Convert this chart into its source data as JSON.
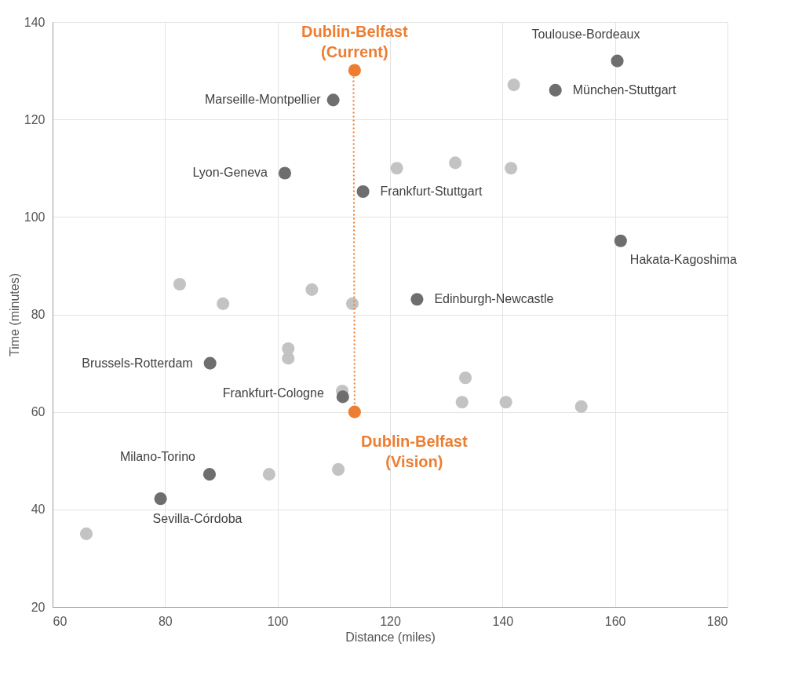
{
  "chart_data": {
    "type": "scatter",
    "xlabel": "Distance (miles)",
    "ylabel": "Time (minutes)",
    "xlim": [
      60,
      180
    ],
    "xticks": [
      60,
      80,
      100,
      120,
      140,
      160,
      180
    ],
    "ylim": [
      20,
      140
    ],
    "yticks": [
      20,
      40,
      60,
      80,
      100,
      120,
      140
    ],
    "grid": true,
    "series": [
      {
        "color": "#c3c3c3",
        "marker": "circle",
        "x": [
          142.0,
          121.2,
          131.6,
          141.5,
          82.6,
          90.3,
          106.1,
          113.3,
          101.9,
          101.9,
          111.5,
          133.4,
          132.8,
          140.6,
          154.0,
          98.5,
          110.8,
          66.0
        ],
        "values": [
          127.1,
          110.0,
          111.1,
          110.0,
          86.2,
          82.2,
          85.1,
          82.2,
          73.0,
          71.0,
          64.3,
          67.0,
          62.0,
          62.0,
          61.1,
          47.2,
          48.2,
          35.0
        ]
      },
      {
        "color": "#6e6e6e",
        "marker": "circle",
        "x": [
          160.4,
          149.4,
          109.9,
          101.3,
          115.2,
          161.0,
          124.8,
          88.0,
          111.6,
          87.9,
          79.2
        ],
        "values": [
          132.0,
          126.0,
          124.0,
          109.0,
          105.2,
          95.1,
          83.1,
          70.0,
          63.1,
          47.2,
          42.2
        ]
      },
      {
        "type": "line",
        "color": "#ed7d31",
        "line_style": "dotted",
        "marker": "none",
        "x": [
          113.5,
          113.7
        ],
        "values": [
          128.8,
          61.6
        ]
      },
      {
        "name": "Dublin-Belfast\n(Current)",
        "color": "#ed7d31",
        "marker": "circle",
        "x": [
          113.7
        ],
        "values": [
          130.1
        ]
      },
      {
        "name": "Dublin-Belfast\n(Vision)",
        "color": "#ed7d31",
        "marker": "circle",
        "x": [
          113.7
        ],
        "values": [
          60.0
        ]
      }
    ],
    "annotations": [
      {
        "text": "Toulouse-Bordeaux",
        "x": 160.4,
        "y": 132.0
      },
      {
        "text": "München-Stuttgart",
        "x": 149.4,
        "y": 126.0
      },
      {
        "text": "Marseille-Montpellier",
        "x": 109.9,
        "y": 124.0
      },
      {
        "text": "Lyon-Geneva",
        "x": 101.3,
        "y": 109.0
      },
      {
        "text": "Frankfurt-Stuttgart",
        "x": 115.2,
        "y": 105.2
      },
      {
        "text": "Hakata-Kagoshima",
        "x": 161.0,
        "y": 95.1
      },
      {
        "text": "Edinburgh-Newcastle",
        "x": 124.8,
        "y": 83.1
      },
      {
        "text": "Brussels-Rotterdam",
        "x": 88.0,
        "y": 70.0
      },
      {
        "text": "Frankfurt-Cologne",
        "x": 111.6,
        "y": 63.1
      },
      {
        "text": "Milano-Torino",
        "x": 87.9,
        "y": 47.2
      },
      {
        "text": "Sevilla-Córdoba",
        "x": 79.2,
        "y": 42.2
      }
    ]
  }
}
